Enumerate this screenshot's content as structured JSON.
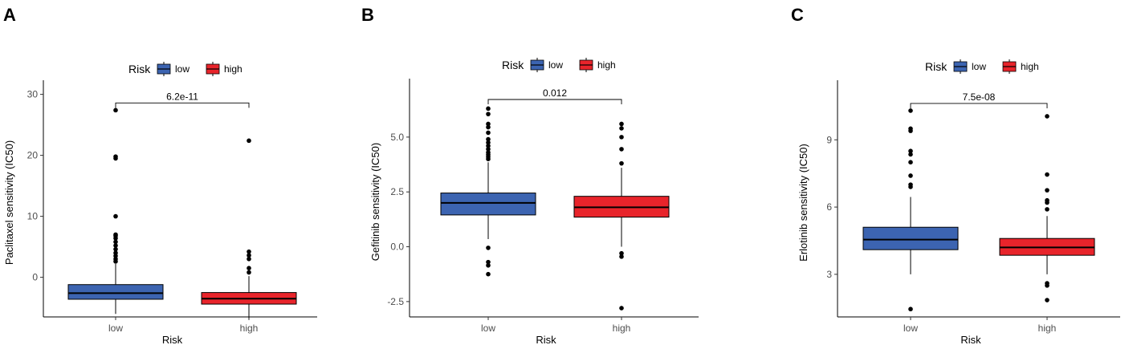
{
  "chart_data": [
    {
      "type": "box",
      "panel": "A",
      "legend_title": "Risk",
      "legend_position": "top",
      "categories": [
        "low",
        "high"
      ],
      "xlabel": "Risk",
      "ylabel": "Paclitaxel sensitivity (IC50)",
      "ylim": [
        -6.5,
        31
      ],
      "yticks": [
        0,
        10,
        20,
        30
      ],
      "ytick_labels": [
        "0",
        "10",
        "20",
        "30"
      ],
      "pvalue": "6.2e-11",
      "series": [
        {
          "name": "low",
          "color": "#3c64b1",
          "q1": -3.6,
          "median": -2.6,
          "q3": -1.2,
          "whisker_low": -6.0,
          "whisker_high": 2.2,
          "outliers": [
            2.6,
            3.0,
            3.5,
            4.0,
            4.6,
            5.2,
            5.8,
            6.4,
            6.8,
            7.0,
            10.0,
            19.5,
            19.8,
            27.4
          ]
        },
        {
          "name": "high",
          "color": "#e8242b",
          "q1": -4.4,
          "median": -3.5,
          "q3": -2.5,
          "whisker_low": -6.8,
          "whisker_high": 0.2,
          "outliers": [
            0.8,
            1.5,
            3.0,
            3.6,
            4.2,
            22.4
          ]
        }
      ]
    },
    {
      "type": "box",
      "panel": "B",
      "legend_title": "Risk",
      "legend_position": "top",
      "categories": [
        "low",
        "high"
      ],
      "xlabel": "Risk",
      "ylabel": "Gefitinib sensitivity (IC50)",
      "ylim": [
        -3.2,
        7.3
      ],
      "yticks": [
        -2.5,
        0.0,
        2.5,
        5.0
      ],
      "ytick_labels": [
        "-2.5",
        "0.0",
        "2.5",
        "5.0"
      ],
      "pvalue": "0.012",
      "series": [
        {
          "name": "low",
          "color": "#3c64b1",
          "q1": 1.45,
          "median": 2.0,
          "q3": 2.45,
          "whisker_low": 0.35,
          "whisker_high": 3.85,
          "outliers": [
            -0.05,
            -0.7,
            -0.85,
            -1.25,
            4.0,
            4.1,
            4.2,
            4.3,
            4.45,
            4.6,
            4.75,
            4.9,
            5.2,
            5.45,
            5.6,
            6.05,
            6.3
          ]
        },
        {
          "name": "high",
          "color": "#e8242b",
          "q1": 1.35,
          "median": 1.8,
          "q3": 2.3,
          "whisker_low": 0.0,
          "whisker_high": 3.6,
          "outliers": [
            -0.3,
            -0.45,
            -2.8,
            3.8,
            4.45,
            5.0,
            5.4,
            5.6
          ]
        }
      ]
    },
    {
      "type": "box",
      "panel": "C",
      "legend_title": "Risk",
      "legend_position": "top",
      "categories": [
        "low",
        "high"
      ],
      "xlabel": "Risk",
      "ylabel": "Erlotinib sensitivity (IC50)",
      "ylim": [
        1.1,
        11.3
      ],
      "yticks": [
        3,
        6,
        9
      ],
      "ytick_labels": [
        "3",
        "6",
        "9"
      ],
      "pvalue": "7.5e-08",
      "series": [
        {
          "name": "low",
          "color": "#3c64b1",
          "q1": 4.1,
          "median": 4.55,
          "q3": 5.1,
          "whisker_low": 3.0,
          "whisker_high": 6.45,
          "outliers": [
            6.9,
            7.0,
            7.4,
            8.0,
            8.35,
            8.5,
            9.4,
            9.5,
            10.3,
            1.45
          ]
        },
        {
          "name": "high",
          "color": "#e8242b",
          "q1": 3.85,
          "median": 4.2,
          "q3": 4.6,
          "whisker_low": 3.0,
          "whisker_high": 5.6,
          "outliers": [
            5.9,
            6.2,
            6.3,
            6.75,
            7.45,
            10.05,
            2.5,
            2.6,
            1.85
          ]
        }
      ]
    }
  ]
}
